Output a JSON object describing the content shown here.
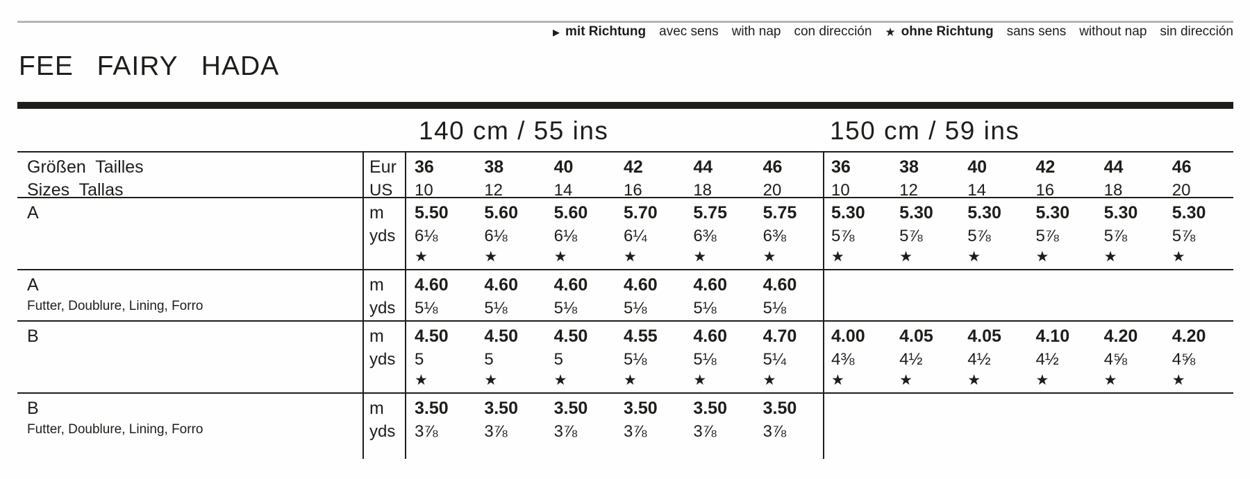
{
  "symbols": {
    "nap": "▶",
    "no_nap": "★"
  },
  "legend": {
    "with_nap": [
      "mit Richtung",
      "avec sens",
      "with nap",
      "con dirección"
    ],
    "without_nap": [
      "ohne Richtung",
      "sans sens",
      "without nap",
      "sin dirección"
    ]
  },
  "title": "FEE FAIRY HADA",
  "table": {
    "section_headers": [
      "140 cm / 55 ins",
      "150 cm / 59 ins"
    ],
    "size_row": {
      "label_line1": "Größen  Tailles",
      "label_line2": "Sizes  Tallas",
      "unit_top": "Eur",
      "unit_bottom": "US",
      "eur_sizes": [
        "36",
        "38",
        "40",
        "42",
        "44",
        "46"
      ],
      "us_sizes": [
        "10",
        "12",
        "14",
        "16",
        "18",
        "20"
      ]
    },
    "rows": [
      {
        "label": "A",
        "sublabel": "",
        "unit_top": "m",
        "unit_bottom": "yds",
        "s140": {
          "m": [
            "5.50",
            "5.60",
            "5.60",
            "5.70",
            "5.75",
            "5.75"
          ],
          "yds": [
            "6⅛",
            "6⅛",
            "6⅛",
            "6¼",
            "6⅜",
            "6⅜"
          ],
          "stars": true
        },
        "s150": {
          "m": [
            "5.30",
            "5.30",
            "5.30",
            "5.30",
            "5.30",
            "5.30"
          ],
          "yds": [
            "5⅞",
            "5⅞",
            "5⅞",
            "5⅞",
            "5⅞",
            "5⅞"
          ],
          "stars": true
        }
      },
      {
        "label": "A",
        "sublabel": "Futter, Doublure, Lining, Forro",
        "unit_top": "m",
        "unit_bottom": "yds",
        "s140": {
          "m": [
            "4.60",
            "4.60",
            "4.60",
            "4.60",
            "4.60",
            "4.60"
          ],
          "yds": [
            "5⅛",
            "5⅛",
            "5⅛",
            "5⅛",
            "5⅛",
            "5⅛"
          ],
          "stars": false
        },
        "s150": null
      },
      {
        "label": "B",
        "sublabel": "",
        "unit_top": "m",
        "unit_bottom": "yds",
        "s140": {
          "m": [
            "4.50",
            "4.50",
            "4.50",
            "4.55",
            "4.60",
            "4.70"
          ],
          "yds": [
            "5",
            "5",
            "5",
            "5⅛",
            "5⅛",
            "5¼"
          ],
          "stars": true
        },
        "s150": {
          "m": [
            "4.00",
            "4.05",
            "4.05",
            "4.10",
            "4.20",
            "4.20"
          ],
          "yds": [
            "4⅜",
            "4½",
            "4½",
            "4½",
            "4⅝",
            "4⅝"
          ],
          "stars": true
        }
      },
      {
        "label": "B",
        "sublabel": "Futter, Doublure, Lining, Forro",
        "unit_top": "m",
        "unit_bottom": "yds",
        "s140": {
          "m": [
            "3.50",
            "3.50",
            "3.50",
            "3.50",
            "3.50",
            "3.50"
          ],
          "yds": [
            "3⅞",
            "3⅞",
            "3⅞",
            "3⅞",
            "3⅞",
            "3⅞"
          ],
          "stars": false
        },
        "s150": null
      }
    ]
  }
}
